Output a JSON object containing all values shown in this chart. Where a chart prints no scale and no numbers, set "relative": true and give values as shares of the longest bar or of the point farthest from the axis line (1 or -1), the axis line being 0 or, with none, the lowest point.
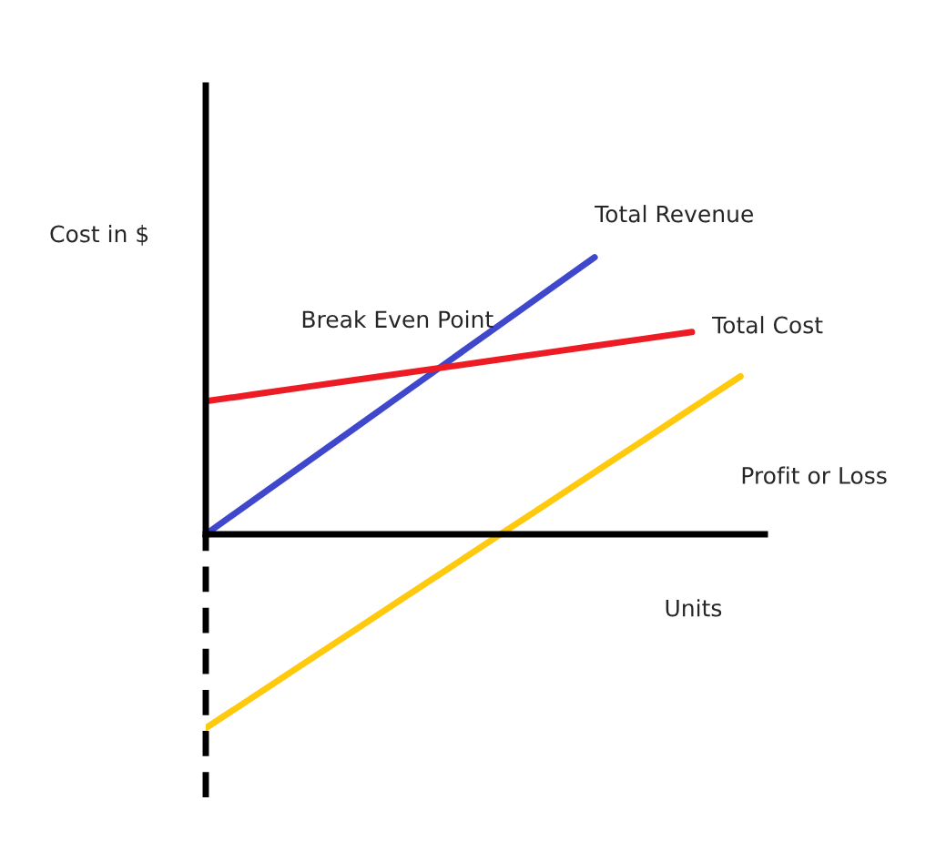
{
  "chart_data": {
    "type": "line",
    "relative": true,
    "xlabel": "Units",
    "ylabel": "Cost in $",
    "categories": [
      null,
      null,
      null,
      null,
      null,
      null,
      null,
      null,
      null,
      null,
      null,
      null
    ],
    "series": [
      {
        "name": "Total Revenue",
        "color": "#3f48cc",
        "values": [
          0,
          0.125,
          0.25,
          0.375,
          0.5,
          0.625,
          0.75,
          0.875,
          1.0,
          null,
          null,
          null
        ]
      },
      {
        "name": "Total Cost",
        "color": "#ed1c24",
        "values": [
          0.48,
          0.505,
          0.53,
          0.555,
          0.58,
          0.605,
          0.63,
          0.655,
          0.68,
          0.705,
          0.73,
          null
        ]
      },
      {
        "name": "Profit or Loss",
        "color": "#ffc90e",
        "values": [
          -0.7,
          -0.585,
          -0.469,
          -0.354,
          -0.238,
          -0.123,
          -0.007,
          0.108,
          0.224,
          0.339,
          0.455,
          0.57
        ]
      }
    ],
    "annotations": [
      "Break Even Point"
    ]
  }
}
